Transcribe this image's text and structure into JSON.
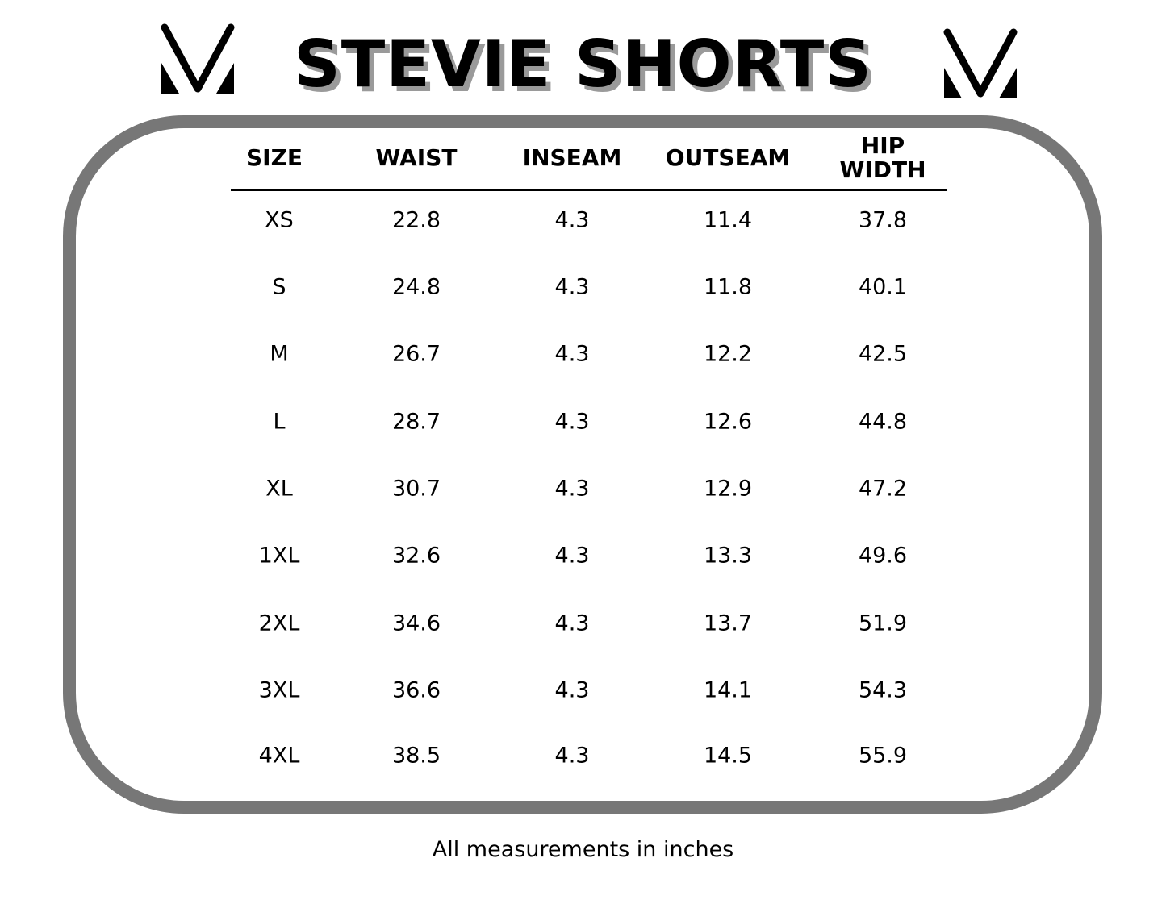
{
  "title": "STEVIE SHORTS",
  "logo": {
    "icon": "brand-v-logo",
    "color": "#000000"
  },
  "colors": {
    "border": "#777777",
    "title_shadow": "#9a9a9a"
  },
  "table": {
    "headers": [
      "SIZE",
      "WAIST",
      "INSEAM",
      "OUTSEAM",
      "HIP WIDTH"
    ],
    "rows": [
      [
        "XS",
        "22.8",
        "4.3",
        "11.4",
        "37.8"
      ],
      [
        "S",
        "24.8",
        "4.3",
        "11.8",
        "40.1"
      ],
      [
        "M",
        "26.7",
        "4.3",
        "12.2",
        "42.5"
      ],
      [
        "L",
        "28.7",
        "4.3",
        "12.6",
        "44.8"
      ],
      [
        "XL",
        "30.7",
        "4.3",
        "12.9",
        "47.2"
      ],
      [
        "1XL",
        "32.6",
        "4.3",
        "13.3",
        "49.6"
      ],
      [
        "2XL",
        "34.6",
        "4.3",
        "13.7",
        "51.9"
      ],
      [
        "3XL",
        "36.6",
        "4.3",
        "14.1",
        "54.3"
      ],
      [
        "4XL",
        "38.5",
        "4.3",
        "14.5",
        "55.9"
      ]
    ]
  },
  "footer": "All measurements in inches"
}
